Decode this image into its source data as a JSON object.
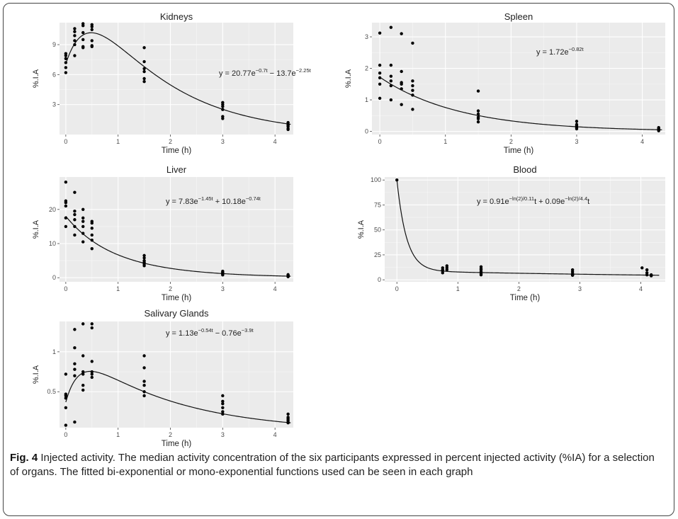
{
  "figure": {
    "caption_label": "Fig. 4",
    "caption_text": " Injected activity. The median activity concentration of the six participants expressed in percent injected activity (%IA) for a selection of organs. The fitted bi-exponential or mono-exponential functions used can be seen in each graph"
  },
  "chart_data": [
    {
      "id": "kidneys",
      "type": "scatter",
      "title": "Kidneys",
      "xlabel": "Time (h)",
      "ylabel": "%.I.A",
      "xlim": [
        -0.12,
        4.35
      ],
      "ylim": [
        0,
        11.2
      ],
      "xticks": [
        0,
        1,
        2,
        3,
        4
      ],
      "yticks": [
        3,
        6,
        9
      ],
      "grid": true,
      "equation": {
        "base": "y = 20.77e",
        "exp1": "−0.7t",
        "mid": " − 13.7e",
        "exp2": "−2.25t"
      },
      "fit": {
        "kind": "biexp",
        "a": 20.77,
        "k1": 0.7,
        "b": -13.7,
        "k2": 2.25
      },
      "points": [
        [
          0,
          6.2
        ],
        [
          0,
          6.7
        ],
        [
          0,
          7.2
        ],
        [
          0,
          7.6
        ],
        [
          0,
          7.9
        ],
        [
          0,
          8.1
        ],
        [
          0.17,
          7.9
        ],
        [
          0.17,
          9.0
        ],
        [
          0.17,
          9.4
        ],
        [
          0.17,
          9.9
        ],
        [
          0.17,
          10.3
        ],
        [
          0.17,
          10.6
        ],
        [
          0.33,
          8.7
        ],
        [
          0.33,
          8.8
        ],
        [
          0.33,
          9.5
        ],
        [
          0.33,
          10.2
        ],
        [
          0.33,
          10.9
        ],
        [
          0.33,
          11.1
        ],
        [
          0.5,
          8.8
        ],
        [
          0.5,
          8.9
        ],
        [
          0.5,
          9.4
        ],
        [
          0.5,
          10.5
        ],
        [
          0.5,
          10.8
        ],
        [
          0.5,
          11.0
        ],
        [
          1.5,
          5.3
        ],
        [
          1.5,
          5.6
        ],
        [
          1.5,
          6.3
        ],
        [
          1.5,
          6.6
        ],
        [
          1.5,
          7.3
        ],
        [
          1.5,
          8.7
        ],
        [
          3,
          1.6
        ],
        [
          3,
          1.8
        ],
        [
          3,
          2.5
        ],
        [
          3,
          2.8
        ],
        [
          3,
          3.0
        ],
        [
          3,
          3.2
        ],
        [
          4.25,
          0.5
        ],
        [
          4.25,
          0.6
        ],
        [
          4.25,
          0.8
        ],
        [
          4.25,
          0.9
        ],
        [
          4.25,
          1.0
        ],
        [
          4.25,
          1.2
        ]
      ]
    },
    {
      "id": "spleen",
      "type": "scatter",
      "title": "Spleen",
      "xlabel": "Time (h)",
      "ylabel": "%.I.A",
      "xlim": [
        -0.12,
        4.35
      ],
      "ylim": [
        -0.1,
        3.45
      ],
      "xticks": [
        0,
        1,
        2,
        3,
        4
      ],
      "yticks": [
        0,
        1,
        2,
        3
      ],
      "grid": true,
      "equation": {
        "base": "y = 1.72e",
        "exp1": "−0.82t",
        "mid": "",
        "exp2": ""
      },
      "fit": {
        "kind": "biexp",
        "a": 1.72,
        "k1": 0.82,
        "b": 0,
        "k2": 0
      },
      "points": [
        [
          0,
          1.05
        ],
        [
          0,
          1.5
        ],
        [
          0,
          1.7
        ],
        [
          0,
          1.85
        ],
        [
          0,
          2.1
        ],
        [
          0,
          3.12
        ],
        [
          0.17,
          1.0
        ],
        [
          0.17,
          1.45
        ],
        [
          0.17,
          1.6
        ],
        [
          0.17,
          1.75
        ],
        [
          0.17,
          2.1
        ],
        [
          0.17,
          3.3
        ],
        [
          0.33,
          0.85
        ],
        [
          0.33,
          1.35
        ],
        [
          0.33,
          1.5
        ],
        [
          0.33,
          1.55
        ],
        [
          0.33,
          1.9
        ],
        [
          0.33,
          3.1
        ],
        [
          0.5,
          0.7
        ],
        [
          0.5,
          1.15
        ],
        [
          0.5,
          1.3
        ],
        [
          0.5,
          1.45
        ],
        [
          0.5,
          1.6
        ],
        [
          0.5,
          2.8
        ],
        [
          1.5,
          0.3
        ],
        [
          1.5,
          0.4
        ],
        [
          1.5,
          0.45
        ],
        [
          1.5,
          0.55
        ],
        [
          1.5,
          0.65
        ],
        [
          1.5,
          1.28
        ],
        [
          3,
          0.08
        ],
        [
          3,
          0.12
        ],
        [
          3,
          0.15
        ],
        [
          3,
          0.18
        ],
        [
          3,
          0.22
        ],
        [
          3,
          0.32
        ],
        [
          4.25,
          0.02
        ],
        [
          4.25,
          0.04
        ],
        [
          4.25,
          0.05
        ],
        [
          4.25,
          0.07
        ],
        [
          4.25,
          0.08
        ],
        [
          4.25,
          0.12
        ]
      ]
    },
    {
      "id": "liver",
      "type": "scatter",
      "title": "Liver",
      "xlabel": "Time (h)",
      "ylabel": "%.I.A",
      "xlim": [
        -0.12,
        4.35
      ],
      "ylim": [
        -1.2,
        29.5
      ],
      "xticks": [
        0,
        1,
        2,
        3,
        4
      ],
      "yticks": [
        0,
        10,
        20
      ],
      "grid": true,
      "equation": {
        "base": "y = 7.83e",
        "exp1": "−1.45t",
        "mid": " + 10.18e",
        "exp2": "−0.74t"
      },
      "fit": {
        "kind": "biexp",
        "a": 7.83,
        "k1": 1.45,
        "b": 10.18,
        "k2": 0.74
      },
      "points": [
        [
          0,
          15
        ],
        [
          0,
          17.5
        ],
        [
          0,
          21
        ],
        [
          0,
          22
        ],
        [
          0,
          22.5
        ],
        [
          0,
          28
        ],
        [
          0.17,
          12.5
        ],
        [
          0.17,
          15
        ],
        [
          0.17,
          17
        ],
        [
          0.17,
          18.5
        ],
        [
          0.17,
          19.5
        ],
        [
          0.17,
          25
        ],
        [
          0.33,
          10.5
        ],
        [
          0.33,
          13
        ],
        [
          0.33,
          15
        ],
        [
          0.33,
          16.5
        ],
        [
          0.33,
          17.5
        ],
        [
          0.33,
          20
        ],
        [
          0.5,
          8.5
        ],
        [
          0.5,
          11
        ],
        [
          0.5,
          12.5
        ],
        [
          0.5,
          14.5
        ],
        [
          0.5,
          16
        ],
        [
          0.5,
          16.5
        ],
        [
          1.5,
          3.5
        ],
        [
          1.5,
          4
        ],
        [
          1.5,
          4.5
        ],
        [
          1.5,
          5
        ],
        [
          1.5,
          5.8
        ],
        [
          1.5,
          6.5
        ],
        [
          3,
          0.8
        ],
        [
          3,
          1
        ],
        [
          3,
          1.2
        ],
        [
          3,
          1.4
        ],
        [
          3,
          1.6
        ],
        [
          3,
          1.9
        ],
        [
          4.25,
          0.3
        ],
        [
          4.25,
          0.4
        ],
        [
          4.25,
          0.5
        ],
        [
          4.25,
          0.6
        ],
        [
          4.25,
          0.7
        ],
        [
          4.25,
          0.9
        ]
      ]
    },
    {
      "id": "blood",
      "type": "scatter",
      "title": "Blood",
      "xlabel": "Time (h)",
      "ylabel": "%.I.A",
      "xlim": [
        -0.2,
        4.4
      ],
      "ylim": [
        -2,
        103
      ],
      "xticks": [
        0,
        1,
        2,
        3,
        4
      ],
      "yticks": [
        0,
        25,
        50,
        75,
        100
      ],
      "grid": true,
      "equation": {
        "base": "y = 0.91e",
        "exp1": "−ln(2)/0.11",
        "mid": "t + 0.09e",
        "exp2": "−ln(2)/4.4",
        "tail": "t"
      },
      "fit": {
        "kind": "biexp",
        "a": 91,
        "k1": 6.3013,
        "b": 9,
        "k2": 0.15753
      },
      "points": [
        [
          0,
          100
        ],
        [
          0.75,
          7
        ],
        [
          0.75,
          9
        ],
        [
          0.75,
          10
        ],
        [
          0.75,
          12
        ],
        [
          0.82,
          10
        ],
        [
          0.82,
          12
        ],
        [
          0.82,
          14
        ],
        [
          1.38,
          5
        ],
        [
          1.38,
          6
        ],
        [
          1.38,
          8
        ],
        [
          1.38,
          10
        ],
        [
          1.38,
          11
        ],
        [
          1.38,
          13
        ],
        [
          2.88,
          4.5
        ],
        [
          2.88,
          5
        ],
        [
          2.88,
          5.5
        ],
        [
          2.88,
          6
        ],
        [
          2.88,
          8
        ],
        [
          2.88,
          10
        ],
        [
          4.02,
          12
        ],
        [
          4.1,
          5
        ],
        [
          4.1,
          7
        ],
        [
          4.1,
          10
        ],
        [
          4.17,
          4
        ],
        [
          4.17,
          4.5
        ],
        [
          4.17,
          5
        ]
      ]
    },
    {
      "id": "salivary",
      "type": "scatter",
      "title": "Salivary Glands",
      "xlabel": "Time (h)",
      "ylabel": "%.I.A",
      "xlim": [
        -0.12,
        4.35
      ],
      "ylim": [
        0.05,
        1.38
      ],
      "xticks": [
        0,
        1,
        2,
        3,
        4
      ],
      "yticks": [
        0.5,
        1.0
      ],
      "grid": true,
      "equation": {
        "base": "y = 1.13e",
        "exp1": "−0.54t",
        "mid": " − 0.76e",
        "exp2": "−3.9t"
      },
      "fit": {
        "kind": "biexp",
        "a": 1.13,
        "k1": 0.54,
        "b": -0.76,
        "k2": 3.9
      },
      "points": [
        [
          0,
          0.08
        ],
        [
          0,
          0.3
        ],
        [
          0,
          0.42
        ],
        [
          0,
          0.45
        ],
        [
          0,
          0.47
        ],
        [
          0,
          0.72
        ],
        [
          0.17,
          0.12
        ],
        [
          0.17,
          0.7
        ],
        [
          0.17,
          0.78
        ],
        [
          0.17,
          0.85
        ],
        [
          0.17,
          1.05
        ],
        [
          0.17,
          1.28
        ],
        [
          0.33,
          0.52
        ],
        [
          0.33,
          0.58
        ],
        [
          0.33,
          0.72
        ],
        [
          0.33,
          0.75
        ],
        [
          0.33,
          0.95
        ],
        [
          0.33,
          1.35
        ],
        [
          0.5,
          0.68
        ],
        [
          0.5,
          0.72
        ],
        [
          0.5,
          0.75
        ],
        [
          0.5,
          0.88
        ],
        [
          0.5,
          1.3
        ],
        [
          0.5,
          1.35
        ],
        [
          1.5,
          0.45
        ],
        [
          1.5,
          0.5
        ],
        [
          1.5,
          0.58
        ],
        [
          1.5,
          0.63
        ],
        [
          1.5,
          0.8
        ],
        [
          1.5,
          0.95
        ],
        [
          3,
          0.22
        ],
        [
          3,
          0.25
        ],
        [
          3,
          0.3
        ],
        [
          3,
          0.35
        ],
        [
          3,
          0.38
        ],
        [
          3,
          0.45
        ],
        [
          4.25,
          0.11
        ],
        [
          4.25,
          0.12
        ],
        [
          4.25,
          0.14
        ],
        [
          4.25,
          0.16
        ],
        [
          4.25,
          0.18
        ],
        [
          4.25,
          0.22
        ]
      ]
    }
  ]
}
